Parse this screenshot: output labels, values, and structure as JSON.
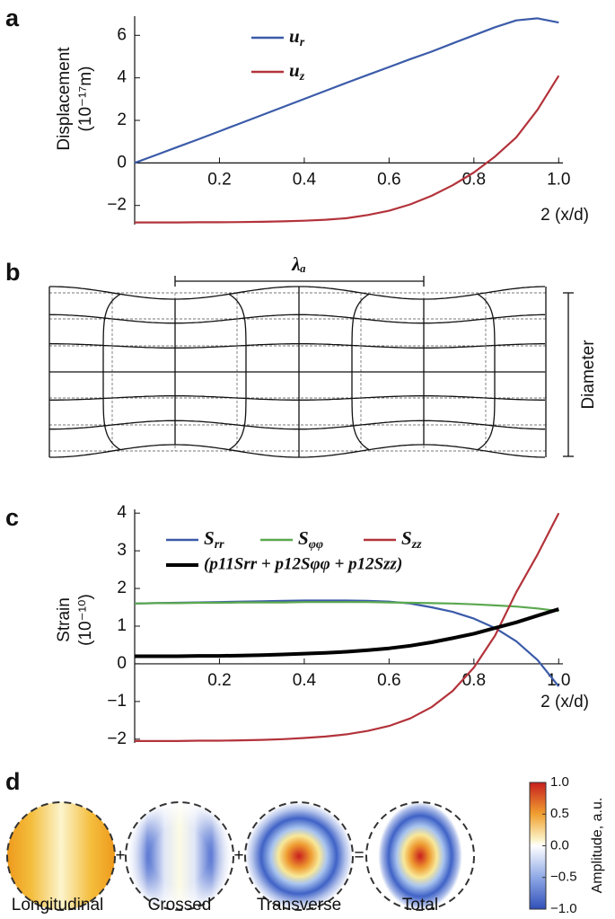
{
  "panel_labels": [
    "a",
    "b",
    "c",
    "d"
  ],
  "chart_data": [
    {
      "type": "line",
      "ylabel": [
        "Displacement",
        "(10⁻¹⁷m)"
      ],
      "xlabel": "2 (x/d)",
      "x": [
        0,
        0.05,
        0.1,
        0.15,
        0.2,
        0.25,
        0.3,
        0.35,
        0.4,
        0.45,
        0.5,
        0.55,
        0.6,
        0.65,
        0.7,
        0.75,
        0.8,
        0.85,
        0.9,
        0.95,
        1.0
      ],
      "xlim": [
        0,
        1.01
      ],
      "ylim": [
        -2.9,
        6.9
      ],
      "xticks": [
        0.2,
        0.4,
        0.6,
        0.8,
        {
          "value": 1,
          "label": "1.0"
        }
      ],
      "yticks": [
        {
          "value": -2,
          "label": "−2"
        },
        0,
        2,
        4,
        6
      ],
      "series": [
        {
          "name": "ur",
          "color": "#3b5ba9",
          "values": [
            0,
            0.37,
            0.74,
            1.11,
            1.49,
            1.87,
            2.25,
            2.63,
            3.01,
            3.39,
            3.77,
            4.14,
            4.51,
            4.88,
            5.23,
            5.62,
            6.0,
            6.38,
            6.7,
            6.8,
            6.6
          ]
        },
        {
          "name": "uz",
          "color": "#b3333b",
          "values": [
            -2.8,
            -2.8,
            -2.8,
            -2.79,
            -2.79,
            -2.78,
            -2.77,
            -2.75,
            -2.72,
            -2.67,
            -2.6,
            -2.45,
            -2.25,
            -1.95,
            -1.55,
            -1.05,
            -0.45,
            0.3,
            1.2,
            2.5,
            4.1
          ]
        }
      ]
    },
    {
      "type": "line",
      "ylabel": [
        "Strain",
        "(10⁻¹⁰)"
      ],
      "xlabel": "2 (x/d)",
      "x": [
        0,
        0.05,
        0.1,
        0.15,
        0.2,
        0.25,
        0.3,
        0.35,
        0.4,
        0.45,
        0.5,
        0.55,
        0.6,
        0.65,
        0.7,
        0.75,
        0.8,
        0.85,
        0.9,
        0.95,
        1.0
      ],
      "xlim": [
        0,
        1.01
      ],
      "ylim": [
        -2.1,
        4.1
      ],
      "xticks": [
        0.2,
        0.4,
        0.6,
        0.8,
        {
          "value": 1,
          "label": "1.0"
        }
      ],
      "yticks": [
        {
          "value": -2,
          "label": "−2"
        },
        {
          "value": -1,
          "label": "−1"
        },
        0,
        1,
        2,
        3,
        4
      ],
      "series": [
        {
          "name": "Srr",
          "color": "#3b5ba9",
          "values": [
            1.6,
            1.61,
            1.62,
            1.63,
            1.64,
            1.65,
            1.66,
            1.67,
            1.68,
            1.68,
            1.68,
            1.67,
            1.65,
            1.6,
            1.5,
            1.38,
            1.2,
            0.95,
            0.6,
            0.1,
            -0.6
          ]
        },
        {
          "name": "Sφφ",
          "color": "#5ba84f",
          "values": [
            1.6,
            1.61,
            1.61,
            1.62,
            1.62,
            1.63,
            1.63,
            1.63,
            1.64,
            1.64,
            1.64,
            1.64,
            1.63,
            1.62,
            1.61,
            1.6,
            1.58,
            1.55,
            1.52,
            1.47,
            1.4
          ]
        },
        {
          "name": "Szz",
          "color": "#b3333b",
          "values": [
            -2.05,
            -2.05,
            -2.05,
            -2.04,
            -2.04,
            -2.03,
            -2.02,
            -2.0,
            -1.97,
            -1.93,
            -1.87,
            -1.78,
            -1.65,
            -1.45,
            -1.15,
            -0.72,
            -0.1,
            0.75,
            1.9,
            2.9,
            4.0
          ]
        },
        {
          "name": "(p11Srr + p12Sφφ + p12Szz)",
          "color": "#000000",
          "values": [
            0.2,
            0.2,
            0.2,
            0.21,
            0.21,
            0.22,
            0.23,
            0.25,
            0.27,
            0.29,
            0.32,
            0.36,
            0.41,
            0.48,
            0.57,
            0.68,
            0.8,
            0.95,
            1.1,
            1.28,
            1.45
          ]
        }
      ]
    }
  ],
  "diagram": {
    "wavelength_label": "λₐ",
    "diameter_label": "Diameter"
  },
  "mode_maps": {
    "operators": [
      "+",
      "+",
      "="
    ],
    "labels": [
      "Longitudinal",
      "Crossed",
      "Transverse",
      "Total"
    ],
    "colorbar": {
      "label": "Amplitude, a.u.",
      "ylim": [
        -1,
        1
      ],
      "yticks": [
        {
          "value": 1,
          "label": "1.0"
        },
        0.5,
        {
          "value": 0,
          "label": "0.0"
        },
        {
          "value": -0.5,
          "label": "−0.5"
        },
        {
          "value": -1,
          "label": "−1.0"
        }
      ]
    }
  }
}
